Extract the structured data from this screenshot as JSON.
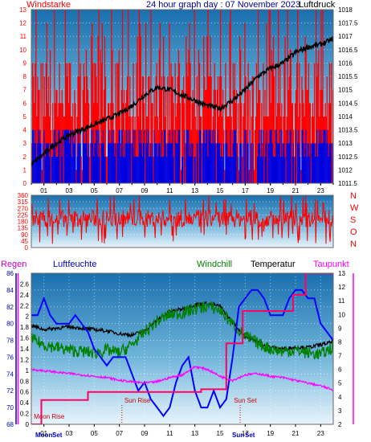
{
  "chart_data": [
    {
      "type": "bar+line",
      "title": "24 hour graph day : 07 November 2023",
      "left_label": "Windstarke",
      "right_label": "Luftdruck",
      "left_axis": {
        "range": [
          0,
          13
        ],
        "ticks": [
          "0",
          "1",
          "2",
          "3",
          "4",
          "5",
          "6",
          "7",
          "8",
          "9",
          "10",
          "11",
          "12",
          "13"
        ]
      },
      "right_axis": {
        "range": [
          1011.5,
          1018
        ],
        "ticks": [
          "1011.5",
          "1012",
          "1012.5",
          "1013",
          "1013.5",
          "1014",
          "1014.5",
          "1015",
          "1015.5",
          "1016",
          "1016.5",
          "1017",
          "1017.5",
          "1018"
        ]
      },
      "x_ticks": [
        "01",
        "03",
        "05",
        "07",
        "09",
        "11",
        "13",
        "15",
        "17",
        "19",
        "21",
        "23"
      ],
      "series": [
        {
          "axis": "right",
          "color": "#000000",
          "x": [
            0,
            1,
            2,
            3,
            4,
            5,
            6,
            7,
            8,
            9,
            10,
            11,
            12,
            13,
            14,
            15,
            16,
            17,
            18,
            19,
            20,
            21,
            22,
            23,
            24
          ],
          "y": [
            1012.2,
            1012.6,
            1013.0,
            1013.3,
            1013.5,
            1013.7,
            1013.9,
            1014.1,
            1014.4,
            1014.8,
            1015.1,
            1015.0,
            1014.8,
            1014.6,
            1014.4,
            1014.3,
            1014.6,
            1015.0,
            1015.5,
            1015.8,
            1016.0,
            1016.4,
            1016.6,
            1016.7,
            1016.9
          ]
        }
      ]
    },
    {
      "type": "line",
      "right_label_letters": [
        "N",
        "W",
        "S",
        "O",
        "N"
      ],
      "left_axis": {
        "range": [
          0,
          360
        ],
        "ticks": [
          "0",
          "45",
          "90",
          "135",
          "180",
          "225",
          "270",
          "315",
          "360"
        ]
      },
      "series": [
        {
          "color": "#ff0000"
        }
      ]
    },
    {
      "type": "line",
      "headers": [
        "Regen",
        "Luftfeuchte",
        "Windchill",
        "Temperatur",
        "Taupunkt"
      ],
      "axis_regen": {
        "range": [
          0,
          2.8
        ],
        "ticks": [
          "0",
          "0.2",
          "0.4",
          "0.6",
          "0.8",
          "1",
          "1.2",
          "1.4",
          "1.6",
          "1.8",
          "2",
          "2.2",
          "2.4",
          "2.6"
        ]
      },
      "axis_humidity": {
        "range": [
          68,
          86
        ],
        "ticks": [
          "68",
          "70",
          "72",
          "74",
          "76",
          "78",
          "80",
          "82",
          "84",
          "86"
        ]
      },
      "axis_temp": {
        "range": [
          2,
          13
        ],
        "ticks": [
          "2",
          "3",
          "4",
          "5",
          "6",
          "7",
          "8",
          "9",
          "10",
          "11",
          "12",
          "13"
        ]
      },
      "x_ticks": [
        "01",
        "03",
        "05",
        "07",
        "09",
        "11",
        "13",
        "15",
        "17",
        "19",
        "21",
        "23"
      ],
      "annotations": [
        "Moon Rise",
        "Moon Set",
        "Sun Rise",
        "Sun Set"
      ],
      "series": [
        {
          "name": "Temperatur",
          "axis": "temp",
          "color": "#000000",
          "x": [
            0,
            1,
            2,
            3,
            4,
            5,
            6,
            7,
            8,
            9,
            10,
            11,
            12,
            13,
            14,
            15,
            16,
            17,
            18,
            19,
            20,
            21,
            22,
            23,
            24
          ],
          "y": [
            9.2,
            8.9,
            9.0,
            9.1,
            9.0,
            8.9,
            8.8,
            8.6,
            8.5,
            8.8,
            9.6,
            10.2,
            10.4,
            10.7,
            10.8,
            10.6,
            9.4,
            8.4,
            8.0,
            7.6,
            7.5,
            7.6,
            7.6,
            7.8,
            8.0
          ]
        },
        {
          "name": "Windchill",
          "axis": "temp",
          "color": "#008000",
          "x": [
            0,
            1,
            2,
            3,
            4,
            5,
            6,
            7,
            8,
            9,
            10,
            11,
            12,
            13,
            14,
            15,
            16,
            17,
            18,
            19,
            20,
            21,
            22,
            23,
            24
          ],
          "y": [
            8.2,
            7.8,
            7.6,
            7.4,
            7.3,
            7.2,
            7.4,
            7.2,
            7.8,
            8.7,
            9.5,
            10.0,
            10.1,
            10.4,
            10.6,
            10.3,
            9.3,
            8.4,
            7.9,
            7.5,
            7.3,
            7.4,
            7.2,
            7.1,
            7.6
          ]
        },
        {
          "name": "Luftfeuchte",
          "axis": "humidity",
          "color": "#0000ff",
          "x": [
            0,
            0.5,
            1,
            1.5,
            2,
            2.5,
            3,
            3.5,
            4,
            4.5,
            5,
            5.5,
            6,
            6.5,
            7,
            7.5,
            8,
            8.5,
            9,
            9.5,
            10,
            10.5,
            11,
            11.5,
            12,
            12.5,
            13,
            13.5,
            14,
            14.5,
            15,
            15.5,
            16,
            16.5,
            17,
            17.5,
            18,
            18.5,
            19,
            19.5,
            20,
            20.5,
            21,
            21.5,
            22,
            22.5,
            23,
            23.5,
            24
          ],
          "y": [
            81,
            81,
            83,
            81,
            80,
            80,
            80,
            81,
            80,
            79,
            77,
            76,
            75,
            76,
            76,
            76,
            74,
            72,
            73,
            71,
            70,
            69,
            70,
            73,
            75,
            76,
            72,
            70,
            70,
            72,
            70,
            71,
            76,
            82,
            83,
            84,
            84,
            83,
            81,
            81,
            81,
            83,
            84,
            84,
            83,
            83,
            80,
            79,
            78
          ]
        },
        {
          "name": "Taupunkt",
          "axis": "temp",
          "color": "#ff00ff",
          "x": [
            0,
            1,
            2,
            3,
            4,
            5,
            6,
            7,
            8,
            9,
            10,
            11,
            12,
            13,
            14,
            15,
            16,
            17,
            18,
            19,
            20,
            21,
            22,
            23,
            24
          ],
          "y": [
            6.0,
            5.9,
            5.8,
            5.7,
            5.6,
            5.5,
            5.4,
            5.2,
            5.1,
            5.0,
            5.1,
            5.4,
            5.6,
            6.2,
            6.0,
            5.5,
            5.2,
            5.6,
            5.7,
            5.5,
            5.4,
            5.2,
            5.0,
            4.8,
            4.5
          ]
        },
        {
          "name": "Regen",
          "axis": "regen",
          "color": "#ff0066",
          "x": [
            0,
            0.8,
            0.8,
            4.5,
            4.5,
            13.5,
            13.5,
            15.5,
            15.5,
            16.8,
            16.8,
            19,
            19,
            20.8,
            20.8,
            21.8,
            21.8,
            24
          ],
          "y": [
            0,
            0,
            0.45,
            0.45,
            0.6,
            0.6,
            0.65,
            0.65,
            1.5,
            1.5,
            2.1,
            2.1,
            2.1,
            2.1,
            2.4,
            2.4,
            2.8,
            2.8
          ]
        }
      ]
    }
  ]
}
